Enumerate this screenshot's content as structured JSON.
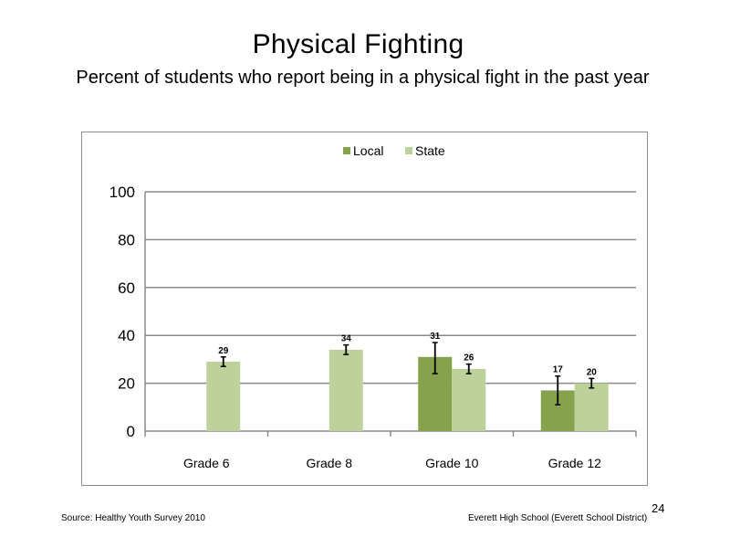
{
  "slide": {
    "title": "Physical Fighting",
    "subtitle": "Percent of students who report being in a physical fight in the past year",
    "page_number": "24",
    "source": "Source: Healthy Youth Survey 2010",
    "school": "Everett High School (Everett School District)"
  },
  "chart_data": {
    "type": "bar",
    "categories": [
      "Grade 6",
      "Grade 8",
      "Grade 10",
      "Grade 12"
    ],
    "series": [
      {
        "name": "Local",
        "values": [
          null,
          null,
          31,
          17
        ],
        "error": [
          null,
          null,
          [
            24,
            37
          ],
          [
            11,
            23
          ]
        ],
        "color": "#86a24c"
      },
      {
        "name": "State",
        "values": [
          29,
          34,
          26,
          20
        ],
        "error": [
          [
            27,
            31
          ],
          [
            32,
            36
          ],
          [
            24,
            28
          ],
          [
            18,
            22
          ]
        ],
        "color": "#bdd29b"
      }
    ],
    "ylim": [
      0,
      100
    ],
    "yticks": [
      "0",
      "20",
      "40",
      "60",
      "80",
      "100"
    ],
    "grid": true,
    "legend": "top-center"
  }
}
